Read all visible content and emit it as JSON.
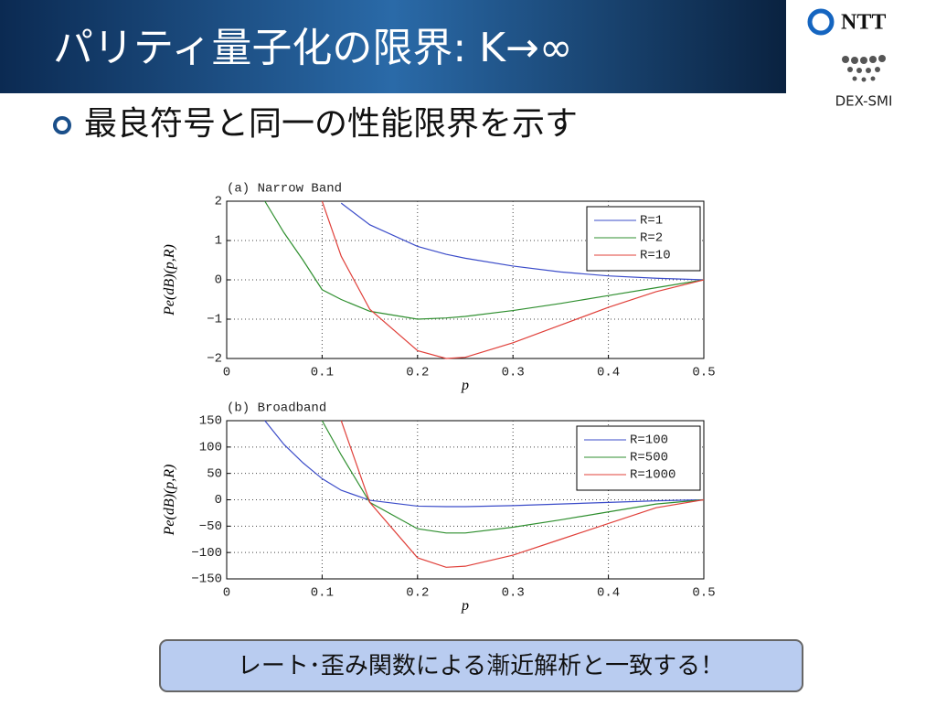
{
  "slide": {
    "title": "パリティ量子化の限界: K→∞",
    "bullet": "最良符号と同一の性能限界を示す",
    "note": "レート･歪み関数による漸近解析と一致する！",
    "logo": "NTT",
    "logo_sub": "DEX-SMI"
  },
  "chart_data": [
    {
      "type": "line",
      "title": "(a)  Narrow Band",
      "xlabel": "p",
      "ylabel": "Pe(dB)(p,R)",
      "x": [
        0.04,
        0.06,
        0.08,
        0.1,
        0.12,
        0.15,
        0.2,
        0.23,
        0.25,
        0.3,
        0.35,
        0.4,
        0.45,
        0.5
      ],
      "series": [
        {
          "name": "R=1",
          "color": "#3b4cc9",
          "values": [
            null,
            null,
            null,
            null,
            1.95,
            1.4,
            0.85,
            0.65,
            0.55,
            0.35,
            0.2,
            0.1,
            0.04,
            0
          ]
        },
        {
          "name": "R=2",
          "color": "#2f8f2f",
          "values": [
            2,
            1.2,
            0.5,
            -0.25,
            -0.5,
            -0.8,
            -1.0,
            -0.97,
            -0.93,
            -0.78,
            -0.6,
            -0.4,
            -0.2,
            0
          ]
        },
        {
          "name": "R=10",
          "color": "#e0403a",
          "values": [
            null,
            null,
            null,
            2,
            0.6,
            -0.75,
            -1.8,
            -2.0,
            -1.97,
            -1.6,
            -1.15,
            -0.7,
            -0.3,
            0
          ]
        }
      ],
      "xlim": [
        0,
        0.5
      ],
      "xticks": [
        0,
        0.1,
        0.2,
        0.3,
        0.4,
        0.5
      ],
      "ylim": [
        -2,
        2
      ],
      "yticks": [
        {
          "value": -2,
          "label": "−2"
        },
        {
          "value": -1,
          "label": "−1"
        },
        0,
        1,
        2
      ],
      "grid": true,
      "legend": "upper-right"
    },
    {
      "type": "line",
      "title": "(b)  Broadband",
      "xlabel": "p",
      "ylabel": "Pe(dB)(p,R)",
      "x": [
        0.04,
        0.06,
        0.08,
        0.1,
        0.12,
        0.15,
        0.2,
        0.23,
        0.25,
        0.3,
        0.35,
        0.4,
        0.45,
        0.5
      ],
      "series": [
        {
          "name": "R=100",
          "color": "#3b4cc9",
          "values": [
            150,
            105,
            70,
            40,
            18,
            -1,
            -12,
            -13,
            -13,
            -11,
            -8,
            -5,
            -2,
            0
          ]
        },
        {
          "name": "R=500",
          "color": "#2f8f2f",
          "values": [
            null,
            null,
            null,
            150,
            85,
            -5,
            -55,
            -63,
            -63,
            -52,
            -38,
            -23,
            -8,
            0
          ]
        },
        {
          "name": "R=1000",
          "color": "#e0403a",
          "values": [
            null,
            null,
            null,
            null,
            150,
            -5,
            -110,
            -128,
            -126,
            -105,
            -75,
            -45,
            -15,
            0
          ]
        }
      ],
      "xlim": [
        0,
        0.5
      ],
      "xticks": [
        0,
        0.1,
        0.2,
        0.3,
        0.4,
        0.5
      ],
      "ylim": [
        -150,
        150
      ],
      "yticks": [
        {
          "value": -150,
          "label": "−150"
        },
        {
          "value": -100,
          "label": "−100"
        },
        {
          "value": -50,
          "label": "−50"
        },
        0,
        50,
        100,
        150
      ],
      "grid": true,
      "legend": "upper-right"
    }
  ]
}
